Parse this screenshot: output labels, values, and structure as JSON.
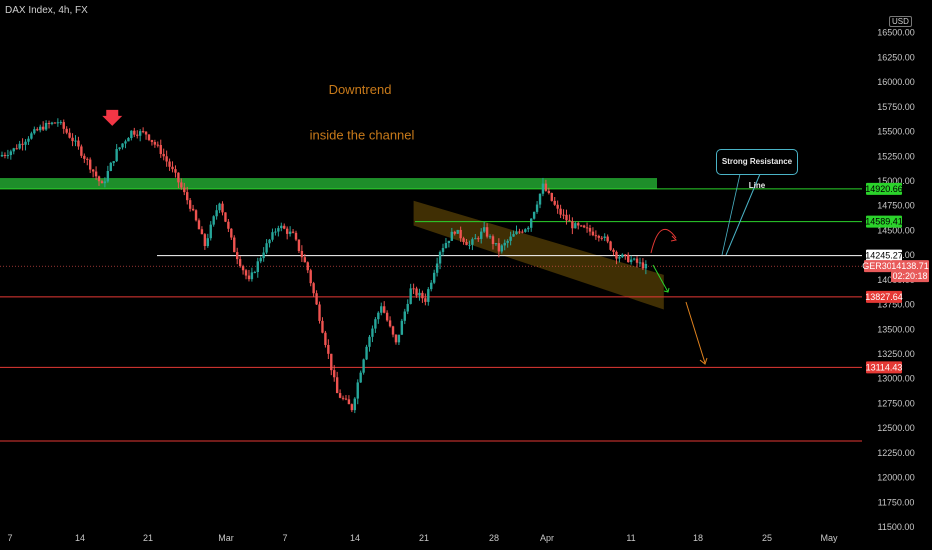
{
  "header": {
    "title": "DAX Index, 4h, FX",
    "currency": "USD"
  },
  "annotations": {
    "downtrend": "Downtrend",
    "channel": "inside the channel",
    "resistance": "Strong Resistance Line"
  },
  "colors": {
    "up": "#26a69a",
    "down": "#ef5350",
    "support_line": "#e53935",
    "green_zone": "#1e8e2a",
    "green_line": "#2bd32b",
    "channel": "#b8860b",
    "orange": "#e0821e",
    "accent_cyan": "#4ab3c6"
  },
  "chart_data": {
    "type": "candlestick",
    "title": "DAX Index, 4h, FX",
    "ylim": [
      11500,
      16750
    ],
    "y_ticks": [
      11500,
      11750,
      12000,
      12250,
      12500,
      12750,
      13000,
      13250,
      13500,
      13750,
      14000,
      14250,
      14500,
      14750,
      15000,
      15250,
      15500,
      15750,
      16000,
      16250,
      16500
    ],
    "y_tick_labels": [
      "11500.00",
      "11750.00",
      "12000.00",
      "12250.00",
      "12500.00",
      "12750.00",
      "13000.00",
      "13250.00",
      "13500.00",
      "13750.00",
      "14000.00",
      "14250.00",
      "14500.00",
      "14750.00",
      "15000.00",
      "15250.00",
      "15500.00",
      "15750.00",
      "16000.00",
      "16250.00",
      "16500.00"
    ],
    "x_ticks": [
      "7",
      "14",
      "21",
      "Mar",
      "7",
      "14",
      "21",
      "28",
      "Apr",
      "11",
      "18",
      "25",
      "May"
    ],
    "grid": false,
    "price_levels": [
      {
        "label": "14920.66",
        "value": 14920.66,
        "style": "green"
      },
      {
        "label": "14589.41",
        "value": 14589.41,
        "style": "green"
      },
      {
        "label": "14245.27",
        "value": 14245.27,
        "style": "white"
      },
      {
        "label": "13827.64",
        "value": 13827.64,
        "style": "red"
      },
      {
        "label": "13114.43",
        "value": 13114.43,
        "style": "red"
      }
    ],
    "current": {
      "symbol": "GER30",
      "price": "14138.71",
      "countdown": "02:20:18",
      "value": 14138.71
    },
    "extra_levels": [
      12370
    ],
    "green_zone": [
      14920,
      15030
    ],
    "channel": {
      "upper": [
        [
          28,
          14800
        ],
        [
          44,
          14050
        ]
      ],
      "lower": [
        [
          28,
          14550
        ],
        [
          44,
          13700
        ]
      ]
    },
    "key_points": [
      [
        0,
        15250
      ],
      [
        1,
        15320
      ],
      [
        2,
        15450
      ],
      [
        3,
        15550
      ],
      [
        4,
        15600
      ],
      [
        5,
        15420
      ],
      [
        6,
        15200
      ],
      [
        7,
        14950
      ],
      [
        8,
        15300
      ],
      [
        9,
        15500
      ],
      [
        10,
        15480
      ],
      [
        11,
        15300
      ],
      [
        12,
        15050
      ],
      [
        13,
        14750
      ],
      [
        14,
        14350
      ],
      [
        15,
        14800
      ],
      [
        16,
        14300
      ],
      [
        17,
        13980
      ],
      [
        18,
        14300
      ],
      [
        19,
        14550
      ],
      [
        20,
        14450
      ],
      [
        21,
        14100
      ],
      [
        22,
        13500
      ],
      [
        23,
        12850
      ],
      [
        24,
        12700
      ],
      [
        25,
        13350
      ],
      [
        26,
        13750
      ],
      [
        27,
        13350
      ],
      [
        28,
        13900
      ],
      [
        29,
        13800
      ],
      [
        30,
        14300
      ],
      [
        31,
        14500
      ],
      [
        32,
        14350
      ],
      [
        33,
        14500
      ],
      [
        34,
        14300
      ],
      [
        35,
        14450
      ],
      [
        36,
        14550
      ],
      [
        37,
        14950
      ],
      [
        38,
        14700
      ],
      [
        39,
        14550
      ],
      [
        40,
        14500
      ],
      [
        41,
        14450
      ],
      [
        42,
        14250
      ],
      [
        43,
        14200
      ],
      [
        44,
        14130
      ]
    ]
  }
}
